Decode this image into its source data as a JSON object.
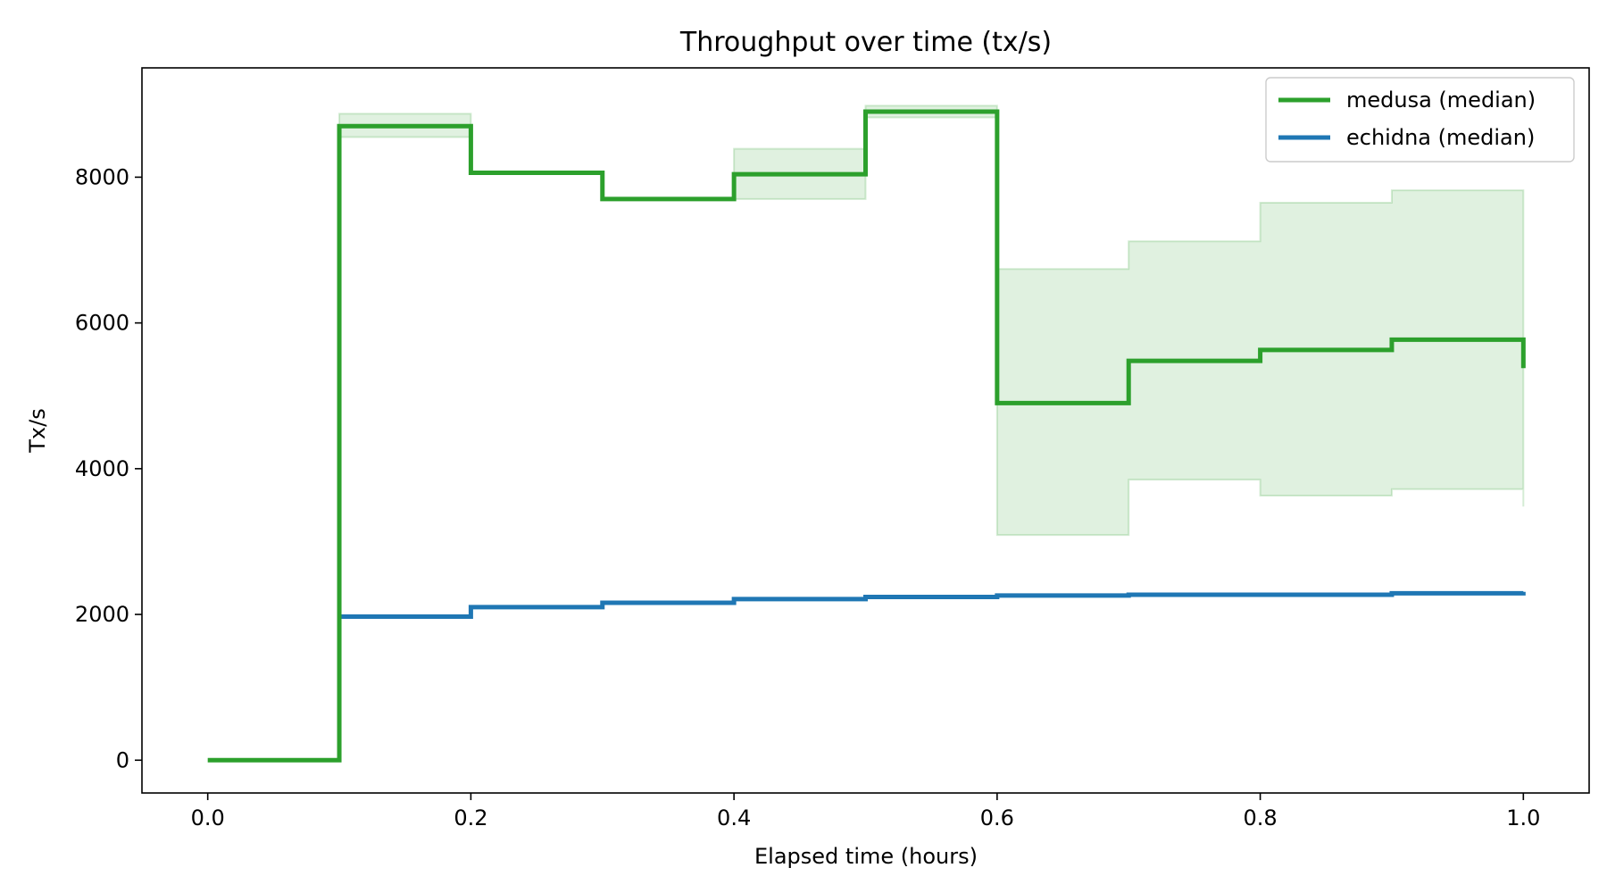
{
  "chart_data": {
    "type": "line",
    "title": "Throughput over time (tx/s)",
    "xlabel": "Elapsed time (hours)",
    "ylabel": "Tx/s",
    "xlim": [
      -0.05,
      1.05
    ],
    "ylim": [
      -450,
      9500
    ],
    "xticks": [
      "0.0",
      "0.2",
      "0.4",
      "0.6",
      "0.8",
      "1.0"
    ],
    "xtick_values": [
      0,
      0.2,
      0.4,
      0.6,
      0.8,
      1.0
    ],
    "yticks": [
      "0",
      "2000",
      "4000",
      "6000",
      "8000"
    ],
    "ytick_values": [
      0,
      2000,
      4000,
      6000,
      8000
    ],
    "grid": false,
    "legend_position": "top-right",
    "step": "post",
    "x": [
      0.0,
      0.1,
      0.2,
      0.3,
      0.4,
      0.5,
      0.6,
      0.7,
      0.8,
      0.9,
      1.0
    ],
    "series": [
      {
        "name": "medusa (median)",
        "color": "#2ca02c",
        "values": [
          0,
          8700,
          8060,
          7700,
          8040,
          8900,
          4900,
          5480,
          5630,
          5770,
          5380
        ]
      },
      {
        "name": "echidna (median)",
        "color": "#1f77b4",
        "values": [
          null,
          1970,
          2100,
          2160,
          2210,
          2240,
          2260,
          2270,
          2270,
          2290,
          2310
        ]
      }
    ],
    "band": {
      "series": "medusa (median)",
      "color": "#2ca02c",
      "opacity": 0.15,
      "x": [
        0.1,
        0.2,
        0.3,
        0.4,
        0.5,
        0.6,
        0.7,
        0.8,
        0.9,
        1.0
      ],
      "lower": [
        8550,
        8060,
        7700,
        7700,
        8820,
        3090,
        3850,
        3630,
        3720,
        3480
      ],
      "upper": [
        8870,
        8060,
        7700,
        8390,
        8980,
        6740,
        7120,
        7650,
        7820,
        7820
      ]
    }
  }
}
